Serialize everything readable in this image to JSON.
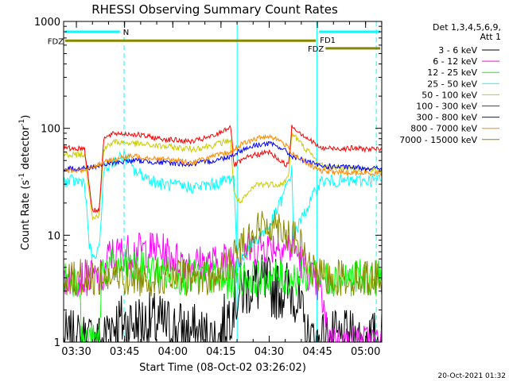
{
  "chart_data": {
    "type": "line",
    "title": "RHESSI Observing Summary Count Rates",
    "xlabel": "Start Time (08-Oct-02 03:26:02)",
    "ylabel_main": "Count Rate (s",
    "ylabel_sup1": "-1",
    "ylabel_mid": " detector",
    "ylabel_sup2": "-1",
    "ylabel_end": ")",
    "y_scale": "log",
    "ylim": [
      1,
      1000
    ],
    "xlim_minutes": [
      0,
      99
    ],
    "x_ticks": [
      {
        "label": "03:30",
        "minutes": 3.97
      },
      {
        "label": "03:45",
        "minutes": 18.97
      },
      {
        "label": "04:00",
        "minutes": 33.97
      },
      {
        "label": "04:15",
        "minutes": 48.97
      },
      {
        "label": "04:30",
        "minutes": 63.97
      },
      {
        "label": "04:45",
        "minutes": 78.97
      },
      {
        "label": "05:00",
        "minutes": 93.97
      }
    ],
    "y_ticks": [
      {
        "label": "1",
        "value": 1
      },
      {
        "label": "10",
        "value": 10
      },
      {
        "label": "100",
        "value": 100
      },
      {
        "label": "1000",
        "value": 1000
      }
    ],
    "legend_header": [
      "Det 1,3,4,5,6,9,",
      "Att 1"
    ],
    "legend_position": "right",
    "timestamp": "20-Oct-2021 01:32",
    "background": "#ffffff",
    "axis_color": "#000000",
    "series": [
      {
        "name": "3 - 6 keV",
        "color": "#000000",
        "x": [
          6,
          12.5,
          14,
          29,
          48,
          53,
          58,
          72,
          76,
          80
        ],
        "y": [
          1,
          1,
          1.5,
          1.5,
          1,
          2.5,
          3.5,
          3,
          1,
          1
        ]
      },
      {
        "name": "6 - 12 keV",
        "color": "#ff00ff",
        "x": [
          6,
          12.5,
          14,
          20,
          29,
          35,
          40,
          48,
          55,
          62,
          68,
          72,
          75,
          80,
          82,
          85
        ],
        "y": [
          4,
          4,
          6.5,
          7,
          7.5,
          6,
          5.5,
          5.5,
          7,
          8,
          8,
          7.5,
          5,
          3,
          1.2,
          1
        ]
      },
      {
        "name": "12 - 25 keV",
        "color": "#00ff00",
        "x": [
          0,
          5,
          5.5,
          11,
          12,
          20,
          30,
          40,
          48,
          50,
          55,
          65,
          72,
          76,
          78,
          80,
          90,
          99
        ],
        "y": [
          4,
          4,
          1,
          1,
          5,
          5,
          4.5,
          4,
          4,
          3.5,
          4,
          4,
          4,
          4,
          5,
          4,
          4,
          4
        ]
      },
      {
        "name": "25 - 50 keV",
        "color": "#00ffff",
        "x": [
          0,
          5,
          6.5,
          8,
          9,
          11,
          12.5,
          16,
          19,
          22,
          30,
          40,
          47,
          53,
          54,
          58,
          64,
          68,
          71,
          71.5,
          80,
          90,
          99
        ],
        "y": [
          32,
          32,
          32,
          8,
          6,
          7,
          40,
          50,
          55,
          40,
          30,
          28,
          30,
          35,
          5,
          8,
          12,
          22,
          40,
          10,
          32,
          32,
          33
        ]
      },
      {
        "name": "50 - 100 keV",
        "color": "#cccc00",
        "x": [
          0,
          5,
          6.5,
          9,
          11,
          12.5,
          16,
          22,
          30,
          40,
          47,
          52,
          53,
          55,
          60,
          65,
          68,
          70,
          71,
          80,
          90,
          99
        ],
        "y": [
          57,
          57,
          57,
          15,
          15,
          65,
          75,
          72,
          68,
          64,
          70,
          78,
          25,
          20,
          30,
          30,
          30,
          35,
          90,
          45,
          42,
          40
        ]
      },
      {
        "name": "100 - 300 keV",
        "color": "#ff0000",
        "x": [
          0,
          5,
          6.5,
          9,
          11,
          12.5,
          16,
          22,
          30,
          40,
          47,
          52,
          53,
          58,
          64,
          68,
          70,
          71,
          80,
          90,
          99
        ],
        "y": [
          65,
          65,
          65,
          17,
          17,
          80,
          90,
          88,
          80,
          75,
          85,
          105,
          45,
          55,
          60,
          48,
          45,
          105,
          65,
          65,
          63
        ]
      },
      {
        "name": "300 - 800 keV",
        "color": "#0000ff",
        "x": [
          0,
          5,
          10,
          16,
          22,
          30,
          40,
          47,
          52,
          55,
          60,
          64,
          68,
          71,
          75,
          80,
          90,
          99
        ],
        "y": [
          42,
          42,
          44,
          48,
          50,
          48,
          46,
          50,
          55,
          62,
          70,
          72,
          65,
          55,
          50,
          44,
          43,
          42
        ]
      },
      {
        "name": "800 - 7000 keV",
        "color": "#ff8800",
        "x": [
          0,
          5,
          10,
          16,
          22,
          30,
          40,
          47,
          52,
          55,
          60,
          64,
          68,
          71,
          75,
          80,
          90,
          99
        ],
        "y": [
          40,
          40,
          45,
          52,
          55,
          52,
          48,
          55,
          60,
          70,
          80,
          85,
          75,
          60,
          48,
          40,
          38,
          38
        ]
      },
      {
        "name": "7000 - 15000 keV",
        "color": "#888800",
        "x": [
          0,
          10,
          20,
          30,
          40,
          48,
          53,
          55,
          58,
          62,
          65,
          68,
          72,
          75,
          76,
          80,
          90,
          99
        ],
        "y": [
          4,
          4,
          4,
          4,
          4,
          4,
          6,
          8,
          10,
          12,
          13,
          12,
          9,
          7,
          5,
          4,
          4,
          4
        ]
      }
    ],
    "annotations": [
      {
        "label": "N",
        "color": "#00ffff",
        "x_start": 0,
        "x_end": 18,
        "y": 800
      },
      {
        "label": "FD1",
        "color": "#00ffff",
        "x_start": 79,
        "x_end": 99,
        "y": 800
      },
      {
        "label": "FDZ",
        "color": "#888800",
        "x_start": 0,
        "x_end": 79,
        "y": 660
      },
      {
        "label": "FDZ",
        "color": "#888800",
        "x_start": 81,
        "x_end": 99,
        "y": 560
      }
    ],
    "night_lines": [
      {
        "minutes": 18.8,
        "style": "dashed"
      },
      {
        "minutes": 54.0,
        "style": "solid"
      },
      {
        "minutes": 78.8,
        "style": "solid"
      },
      {
        "minutes": 97.3,
        "style": "dashed"
      }
    ]
  }
}
